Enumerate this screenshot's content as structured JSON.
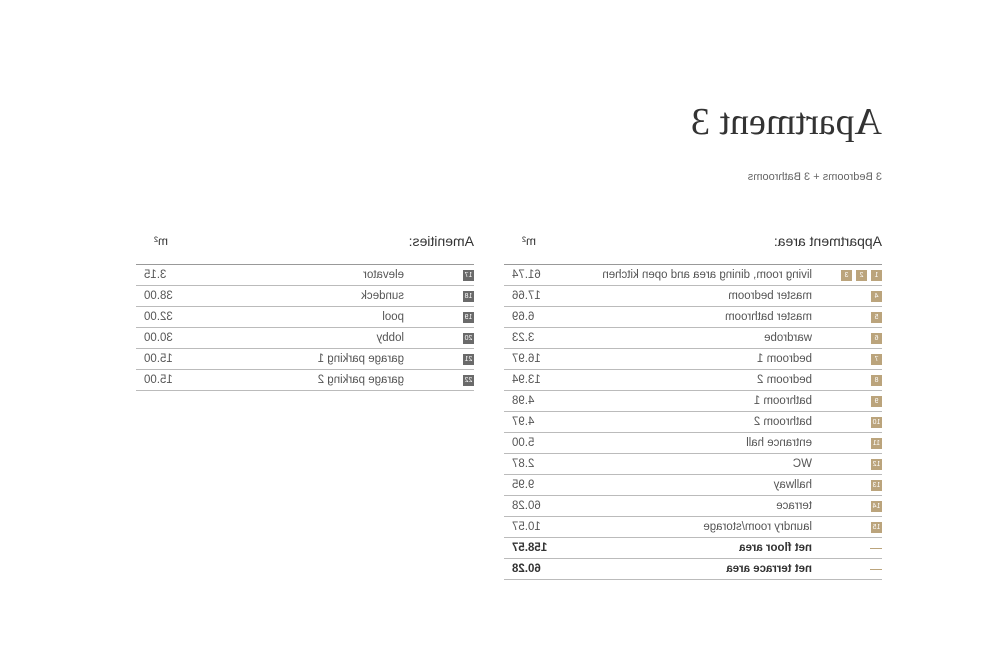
{
  "title": "Apartment 3",
  "subtitle": "3 Bedrooms + 3 Bathrooms",
  "colors": {
    "apartment_badge": "#bba47c",
    "amenity_badge": "#6a6a6a"
  },
  "apartment": {
    "heading": "Appartment area:",
    "unit": "m²",
    "rows": [
      {
        "badges": [
          "1",
          "2",
          "3"
        ],
        "label": "living room, dining area and open kitchen",
        "value": "61.74"
      },
      {
        "badges": [
          "4"
        ],
        "label": "master bedroom",
        "value": "17.66"
      },
      {
        "badges": [
          "5"
        ],
        "label": "master bathroom",
        "value": "6.69"
      },
      {
        "badges": [
          "6"
        ],
        "label": "wardrobe",
        "value": "3.23"
      },
      {
        "badges": [
          "7"
        ],
        "label": "bedroom 1",
        "value": "16.97"
      },
      {
        "badges": [
          "8"
        ],
        "label": "bedroom 2",
        "value": "13.94"
      },
      {
        "badges": [
          "9"
        ],
        "label": "bathroom 1",
        "value": "4.98"
      },
      {
        "badges": [
          "10"
        ],
        "label": "bathroom 2",
        "value": "4.97"
      },
      {
        "badges": [
          "11"
        ],
        "label": "entrance hall",
        "value": "5.00"
      },
      {
        "badges": [
          "12"
        ],
        "label": "WC",
        "value": "2.87"
      },
      {
        "badges": [
          "13"
        ],
        "label": "hallway",
        "value": "9.95"
      },
      {
        "badges": [
          "14"
        ],
        "label": "terrace",
        "value": "60.28"
      },
      {
        "badges": [
          "15"
        ],
        "label": "laundry room/storage",
        "value": "10.57"
      }
    ],
    "totals": [
      {
        "label": "net floor area",
        "value": "158.57"
      },
      {
        "label": "net terrace area",
        "value": "60.28"
      }
    ]
  },
  "amenities": {
    "heading": "Amenities:",
    "unit": "m²",
    "rows": [
      {
        "badges": [
          "17"
        ],
        "label": "elevator",
        "value": "3.15"
      },
      {
        "badges": [
          "18"
        ],
        "label": "sundeck",
        "value": "38.00"
      },
      {
        "badges": [
          "19"
        ],
        "label": "pool",
        "value": "32.00"
      },
      {
        "badges": [
          "20"
        ],
        "label": "lobby",
        "value": "30.00"
      },
      {
        "badges": [
          "21"
        ],
        "label": "garage parking 1",
        "value": "15.00"
      },
      {
        "badges": [
          "22"
        ],
        "label": "garage parking 2",
        "value": "15.00"
      }
    ]
  }
}
